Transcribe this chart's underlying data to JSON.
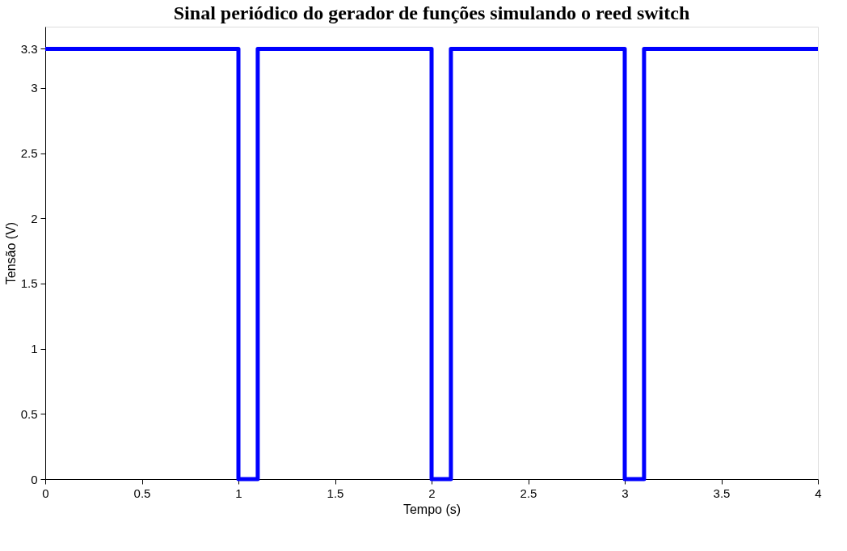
{
  "chart_data": {
    "type": "line",
    "title": "Sinal periódico do gerador de funções simulando o reed switch",
    "xlabel": "Tempo (s)",
    "ylabel": "Tensão (V)",
    "x": [
      0,
      1,
      1,
      1.1,
      1.1,
      2,
      2,
      2.1,
      2.1,
      3,
      3,
      3.1,
      3.1,
      4
    ],
    "series": [
      {
        "color": "#0000ff",
        "values": [
          3.3,
          3.3,
          0,
          0,
          3.3,
          3.3,
          0,
          0,
          3.3,
          3.3,
          0,
          0,
          3.3,
          3.3
        ]
      }
    ],
    "xlim": [
      0,
      4
    ],
    "xticks": [
      0,
      0.5,
      1,
      1.5,
      2,
      2.5,
      3,
      3.5,
      4
    ],
    "ylim": [
      0,
      3.47
    ],
    "yticks": [
      0,
      0.5,
      1,
      1.5,
      2,
      2.5,
      3,
      3.3
    ],
    "grid": false,
    "legend": false,
    "marker": "none",
    "line_style": "solid"
  }
}
